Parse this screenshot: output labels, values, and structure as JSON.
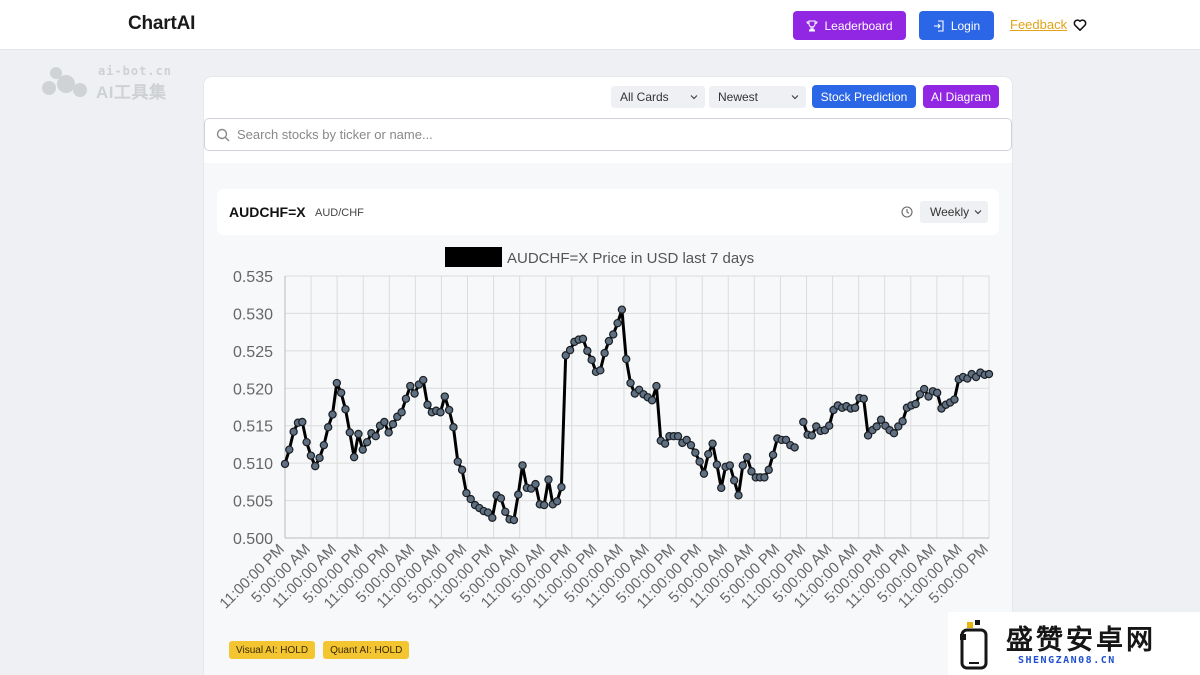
{
  "header": {
    "brand": "ChartAI",
    "leaderboard_label": "Leaderboard",
    "login_label": "Login",
    "feedback_label": "Feedback"
  },
  "watermark": {
    "line1": "ai-bot.cn",
    "line2": "AI工具集"
  },
  "toolbar": {
    "cards_filter": "All Cards",
    "sort": "Newest",
    "stock_prediction_label": "Stock Prediction",
    "ai_diagram_label": "AI Diagram"
  },
  "search": {
    "placeholder": "Search stocks by ticker or name..."
  },
  "stock_card": {
    "ticker": "AUDCHF=X",
    "pair": "AUD/CHF",
    "period": "Weekly",
    "badges": [
      "Visual AI: HOLD",
      "Quant AI: HOLD"
    ]
  },
  "corner_watermark": {
    "cn": "盛赞安卓网",
    "en": "SHENGZAN08.CN"
  },
  "colors": {
    "purple": "#9227e3",
    "blue": "#2b66e6",
    "feedback": "#e0a31a",
    "badge": "#f3c531",
    "line": "#000000",
    "marker": "#5f7082"
  },
  "chart_data": {
    "type": "line",
    "title": "AUDCHF=X Price in USD last 7 days",
    "xlabel": "",
    "ylabel": "",
    "ylim": [
      0.5,
      0.535
    ],
    "yticks": [
      "0.535",
      "0.530",
      "0.525",
      "0.520",
      "0.515",
      "0.510",
      "0.505",
      "0.500"
    ],
    "ytick_values": [
      0.535,
      0.53,
      0.525,
      0.52,
      0.515,
      0.51,
      0.505,
      0.5
    ],
    "xticks": [
      "11:00:00 PM",
      "5:00:00 AM",
      "11:00:00 AM",
      "5:00:00 PM",
      "11:00:00 PM",
      "5:00:00 AM",
      "11:00:00 AM",
      "5:00:00 PM",
      "11:00:00 PM",
      "5:00:00 AM",
      "11:00:00 AM",
      "5:00:00 PM",
      "11:00:00 PM",
      "5:00:00 AM",
      "11:00:00 AM",
      "5:00:00 PM",
      "11:00:00 PM",
      "5:00:00 AM",
      "11:00:00 AM",
      "5:00:00 PM",
      "11:00:00 PM",
      "5:00:00 AM",
      "11:00:00 AM",
      "5:00:00 PM",
      "11:00:00 PM",
      "5:00:00 AM",
      "11:00:00 AM",
      "5:00:00 PM"
    ],
    "grid": true,
    "legend": "none",
    "series": [
      {
        "values": [
          0.5099,
          0.5118,
          0.5142,
          0.5154,
          0.5155,
          0.5128,
          0.511,
          0.5096,
          0.5107,
          0.5124,
          0.5148,
          0.5165,
          0.5207,
          0.5194,
          0.5172,
          0.5141,
          0.5108,
          0.5139,
          0.5118,
          0.5128,
          0.514,
          0.5136,
          0.515,
          0.5155,
          0.5141,
          0.5152,
          0.5162,
          0.5168,
          0.5186,
          0.5203,
          0.5193,
          0.5205,
          0.5211,
          0.5178,
          0.5168,
          0.517,
          0.5168,
          0.5189,
          0.5171,
          0.5148,
          0.5102,
          0.5091,
          0.506,
          0.5052,
          0.5044,
          0.504,
          0.5036,
          0.5034,
          0.5027,
          0.5057,
          0.5053,
          0.5035,
          0.5025,
          0.5024,
          0.5058,
          0.5097,
          0.5067,
          0.5066,
          0.5072,
          0.5045,
          0.5044,
          0.5078,
          0.5045,
          0.5049,
          0.5068,
          0.5244,
          0.5251,
          0.5262,
          0.5265,
          0.5266,
          0.525,
          0.5238,
          0.5222,
          0.5224,
          0.5247,
          0.5263,
          0.5272,
          0.5287,
          0.5305,
          0.5239,
          0.5207,
          0.5193,
          0.5198,
          0.5192,
          0.5188,
          0.5184,
          0.5203,
          0.513,
          0.5126,
          0.5136,
          0.5136,
          0.5136,
          0.5127,
          0.5131,
          0.5124,
          0.5114,
          0.5102,
          0.5086,
          0.5112,
          0.5126,
          0.5098,
          0.5067,
          0.5095,
          0.5097,
          0.5077,
          0.5057,
          0.5097,
          0.5108,
          0.5089,
          0.5081,
          0.5081,
          0.5081,
          0.5091,
          0.5111,
          0.5133,
          0.5131,
          0.5131,
          0.5124,
          0.5121,
          null,
          0.5155,
          0.5138,
          0.5137,
          0.5149,
          0.5143,
          0.5144,
          0.515,
          0.5171,
          0.5177,
          0.5174,
          0.5176,
          0.5173,
          0.5174,
          0.5187,
          0.5186,
          0.5137,
          0.5144,
          0.5149,
          0.5158,
          0.515,
          0.5144,
          0.514,
          0.5149,
          0.5156,
          0.5174,
          0.5177,
          0.5179,
          0.5192,
          0.5199,
          0.5189,
          0.5196,
          0.5194,
          0.5173,
          0.5178,
          0.5181,
          0.5185,
          0.5212,
          0.5215,
          0.5213,
          0.5219,
          0.5215,
          0.5221,
          0.5218,
          0.5219
        ]
      }
    ]
  }
}
